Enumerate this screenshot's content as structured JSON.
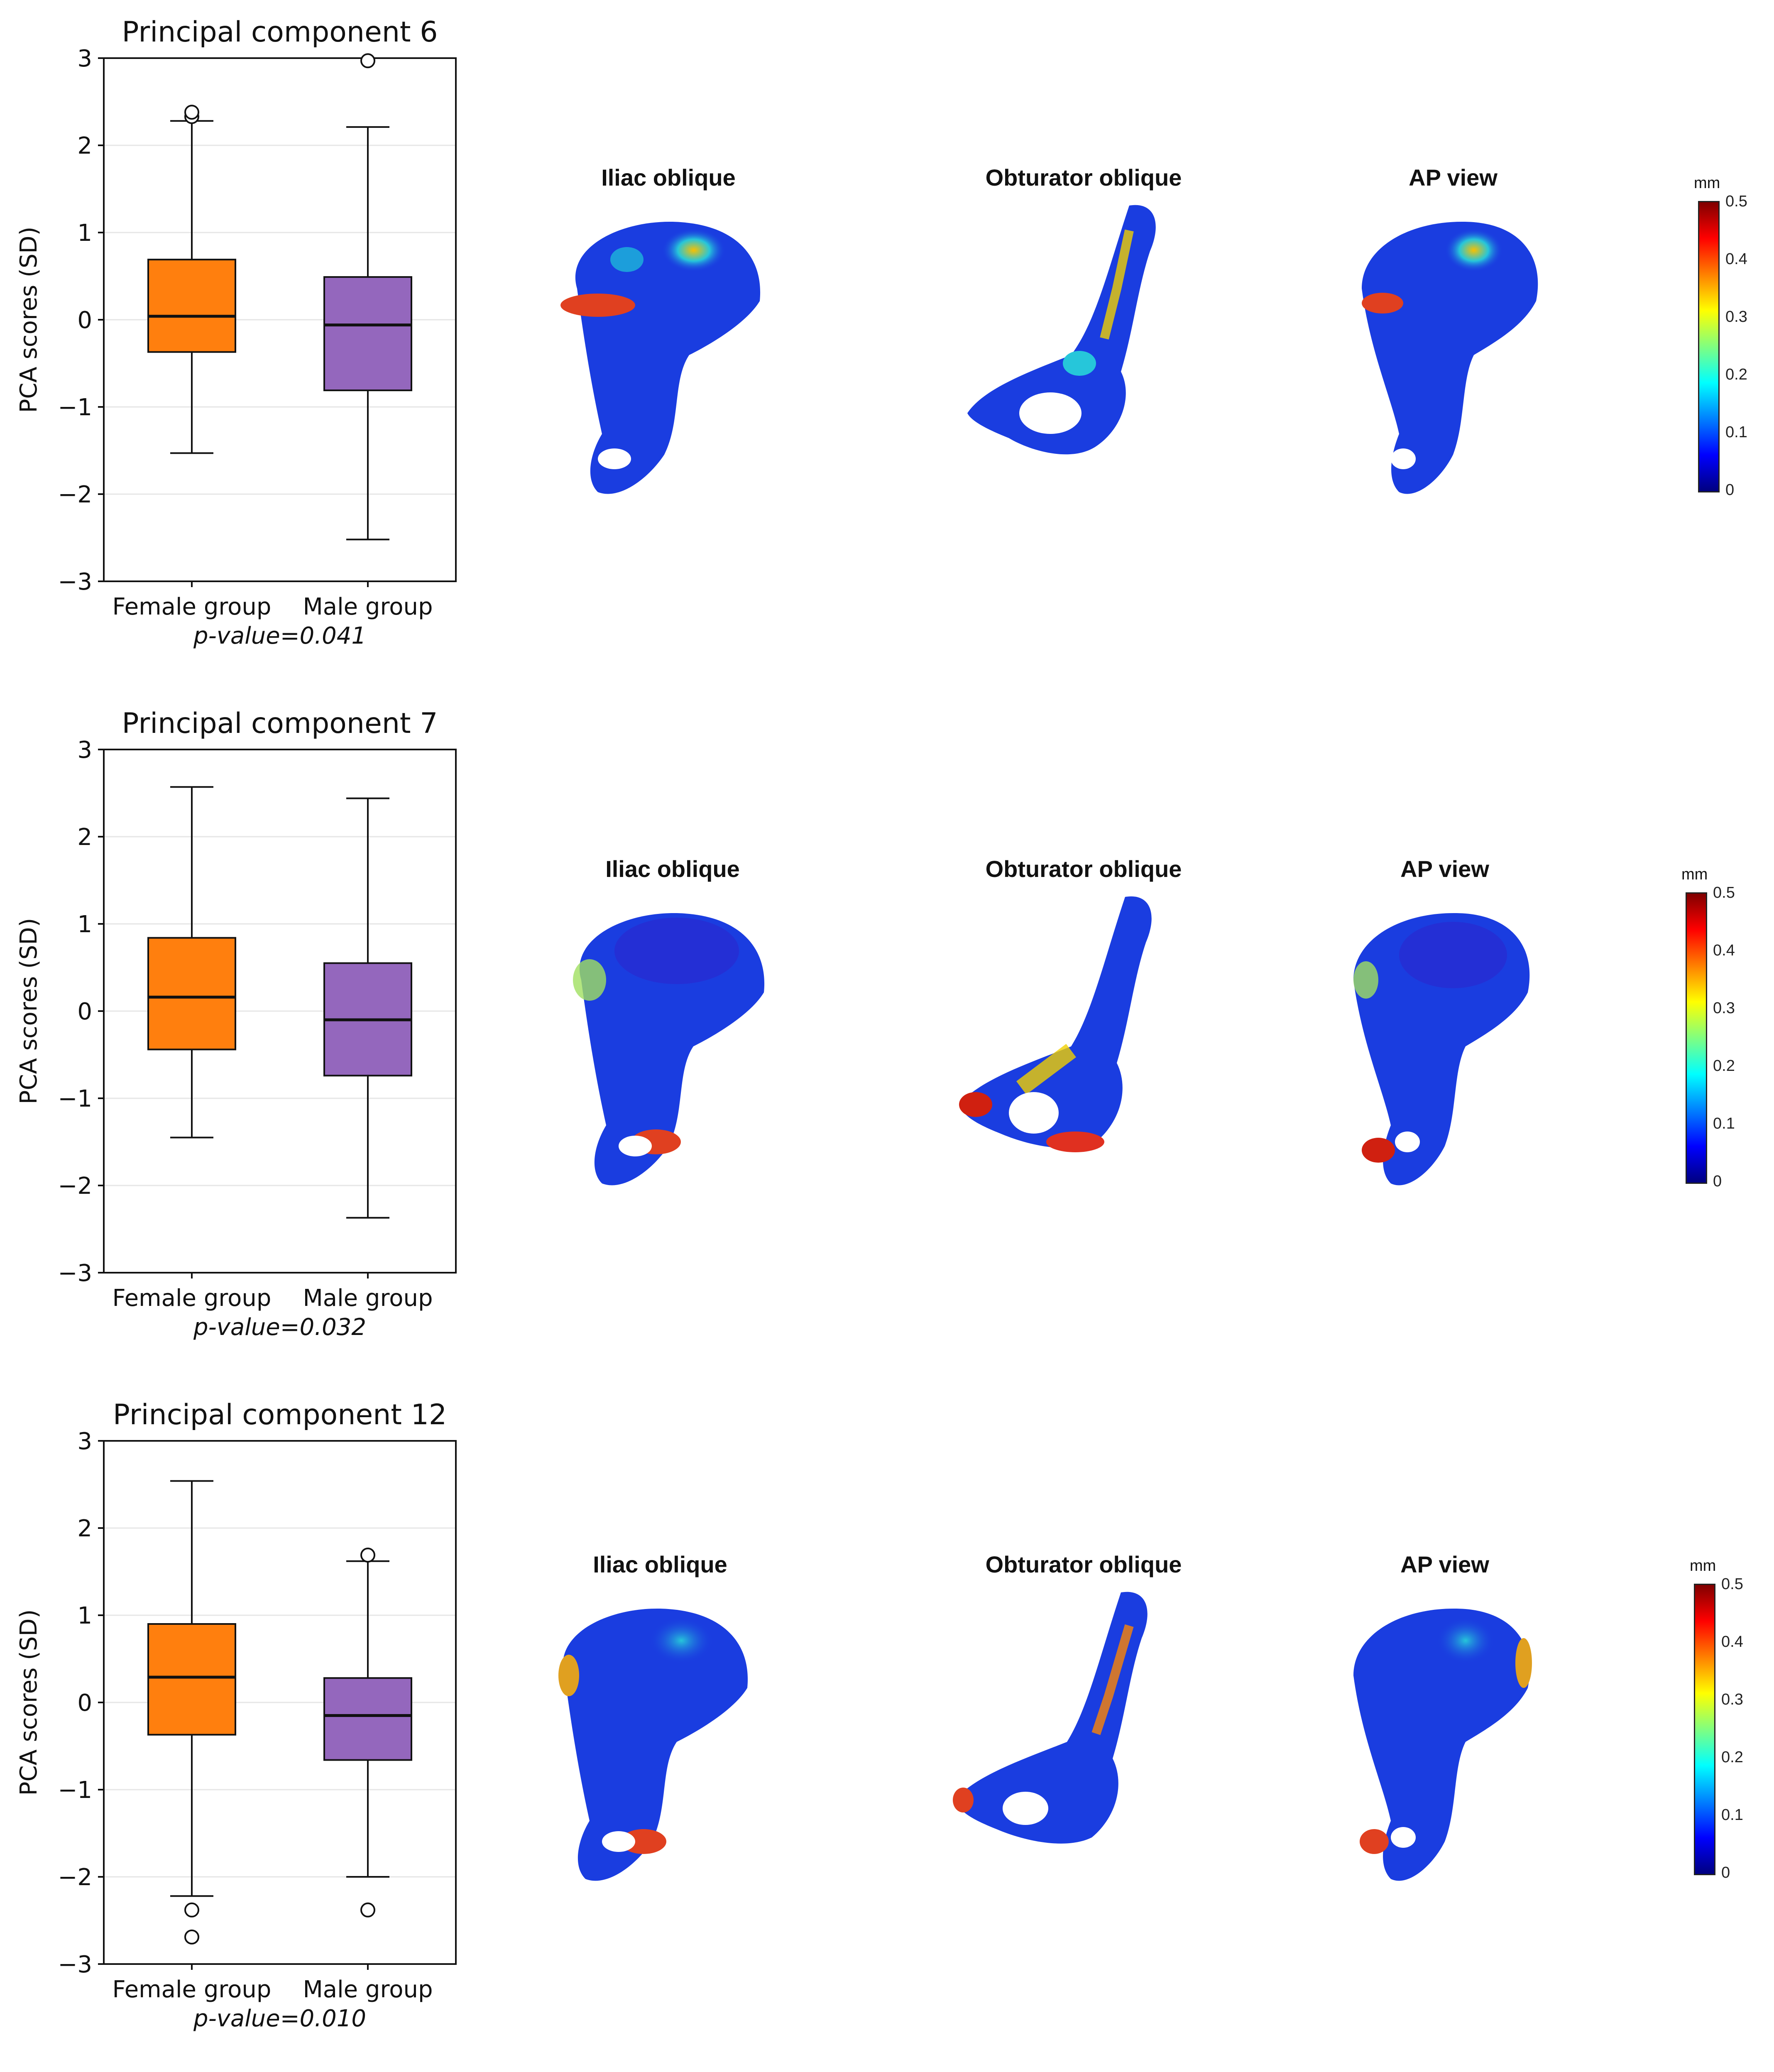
{
  "chart_data": [
    {
      "type": "box",
      "title": "Principal component 6",
      "ylabel": "PCA scores (SD)",
      "ylim": [
        -3,
        3
      ],
      "yticks": [
        "3",
        "2",
        "1",
        "0",
        "−1",
        "−2",
        "−3"
      ],
      "ytick_values": [
        3,
        2,
        1,
        0,
        -1,
        -2,
        -3
      ],
      "categories": [
        "Female group",
        "Male group"
      ],
      "boxes": [
        {
          "color": "#ff7f0e",
          "whisker_low": -1.53,
          "q1": -0.37,
          "median": 0.04,
          "q3": 0.69,
          "whisker_high": 2.28,
          "outliers": [
            2.33,
            2.38
          ]
        },
        {
          "color": "#9467bd",
          "whisker_low": -2.52,
          "q1": -0.81,
          "median": -0.06,
          "q3": 0.49,
          "whisker_high": 2.21,
          "outliers": [
            2.97
          ]
        }
      ],
      "pvalue": "p-value=0.041",
      "views": [
        "Iliac oblique",
        "Obturator oblique",
        "AP view"
      ],
      "colorbar": {
        "unit": "mm",
        "ticks": [
          "0.5",
          "0.4",
          "0.3",
          "0.2",
          "0.1",
          "0"
        ],
        "range": [
          0,
          0.5
        ]
      }
    },
    {
      "type": "box",
      "title": "Principal component 7",
      "ylabel": "PCA scores (SD)",
      "ylim": [
        -3,
        3
      ],
      "yticks": [
        "3",
        "2",
        "1",
        "0",
        "−1",
        "−2",
        "−3"
      ],
      "ytick_values": [
        3,
        2,
        1,
        0,
        -1,
        -2,
        -3
      ],
      "categories": [
        "Female group",
        "Male group"
      ],
      "boxes": [
        {
          "color": "#ff7f0e",
          "whisker_low": -1.45,
          "q1": -0.44,
          "median": 0.16,
          "q3": 0.84,
          "whisker_high": 2.57,
          "outliers": []
        },
        {
          "color": "#9467bd",
          "whisker_low": -2.37,
          "q1": -0.74,
          "median": -0.1,
          "q3": 0.55,
          "whisker_high": 2.44,
          "outliers": []
        }
      ],
      "pvalue": "p-value=0.032",
      "views": [
        "Iliac oblique",
        "Obturator oblique",
        "AP view"
      ],
      "colorbar": {
        "unit": "mm",
        "ticks": [
          "0.5",
          "0.4",
          "0.3",
          "0.2",
          "0.1",
          "0"
        ],
        "range": [
          0,
          0.5
        ]
      }
    },
    {
      "type": "box",
      "title": "Principal component 12",
      "ylabel": "PCA scores (SD)",
      "ylim": [
        -3,
        3
      ],
      "yticks": [
        "3",
        "2",
        "1",
        "0",
        "−1",
        "−2",
        "−3"
      ],
      "ytick_values": [
        3,
        2,
        1,
        0,
        -1,
        -2,
        -3
      ],
      "categories": [
        "Female group",
        "Male group"
      ],
      "boxes": [
        {
          "color": "#ff7f0e",
          "whisker_low": -2.22,
          "q1": -0.37,
          "median": 0.29,
          "q3": 0.9,
          "whisker_high": 2.54,
          "outliers": [
            -2.38,
            -2.69
          ]
        },
        {
          "color": "#9467bd",
          "whisker_low": -2.0,
          "q1": -0.66,
          "median": -0.15,
          "q3": 0.28,
          "whisker_high": 1.62,
          "outliers": [
            1.69,
            -2.38
          ]
        }
      ],
      "pvalue": "p-value=0.010",
      "views": [
        "Iliac oblique",
        "Obturator oblique",
        "AP view"
      ],
      "colorbar": {
        "unit": "mm",
        "ticks": [
          "0.5",
          "0.4",
          "0.3",
          "0.2",
          "0.1",
          "0"
        ],
        "range": [
          0,
          0.5
        ]
      }
    }
  ]
}
